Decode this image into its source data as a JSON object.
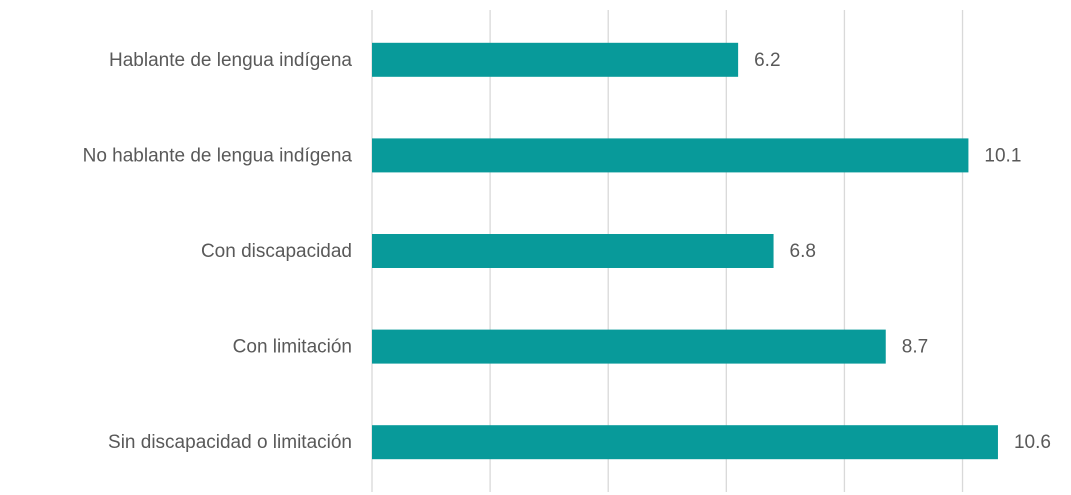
{
  "chart_data": {
    "type": "barh",
    "categories": [
      "Hablante de lengua indígena",
      "No hablante de lengua indígena",
      "Con discapacidad",
      "Con limitación",
      "Sin discapacidad o limitación"
    ],
    "values": [
      6.2,
      10.1,
      6.8,
      8.7,
      10.6
    ],
    "color": "#089a9a",
    "xlim": [
      0,
      11.6
    ],
    "xticks": [
      0,
      2,
      4,
      6,
      8,
      10
    ],
    "grid": true
  }
}
